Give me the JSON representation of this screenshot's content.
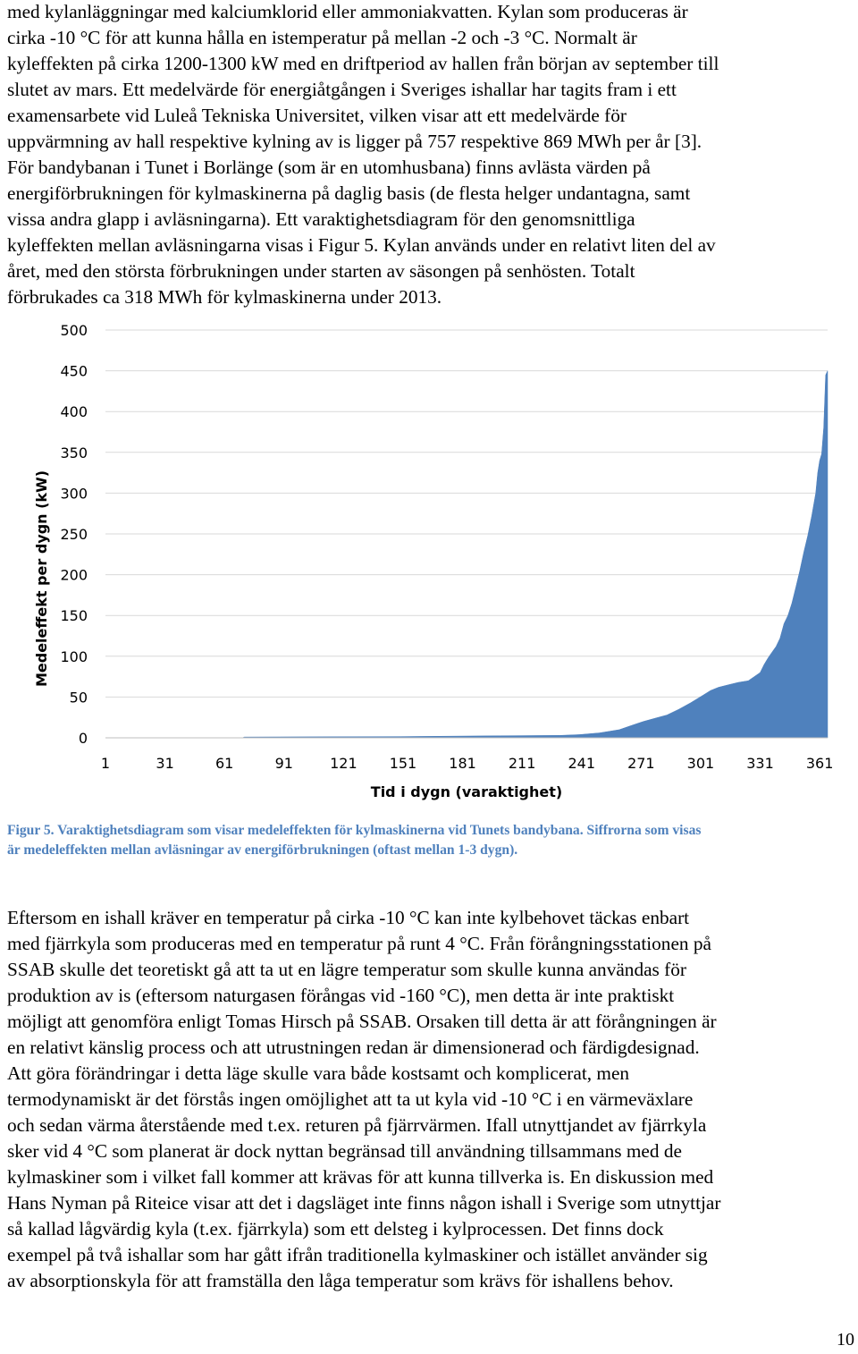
{
  "paragraphs": {
    "top": "med kylanläggningar med kalciumklorid eller ammoniakvatten. Kylan som produceras är\ncirka -10 °C för att kunna hålla en istemperatur på mellan -2 och -3 °C. Normalt är\nkyleffekten på cirka 1200-1300 kW med en driftperiod av hallen från början av september till\nslutet av mars. Ett medelvärde för energiåtgången i Sveriges ishallar har tagits fram i ett\nexamensarbete vid Luleå Tekniska Universitet, vilken visar att ett medelvärde för\nuppvärmning av hall respektive kylning av is ligger på 757 respektive 869 MWh per år [3].\nFör bandybanan i Tunet i Borlänge (som är en utomhusbana) finns avlästa värden på\nenergiförbrukningen för kylmaskinerna på daglig basis (de flesta helger undantagna, samt\nvissa andra glapp i avläsningarna). Ett varaktighetsdiagram för den genomsnittliga\nkyleffekten mellan avläsningarna visas i Figur 5. Kylan används under en relativt liten del av\nåret, med den största förbrukningen under starten av säsongen på senhösten. Totalt\nförbrukades ca 318 MWh för kylmaskinerna under 2013.",
    "bottom": "Eftersom en ishall kräver en temperatur på cirka -10 °C kan inte kylbehovet täckas enbart\nmed fjärrkyla som produceras med en temperatur på runt 4 °C. Från förångningsstationen på\nSSAB skulle det teoretiskt gå att ta ut en lägre temperatur som skulle kunna användas för\nproduktion av is (eftersom naturgasen förångas vid -160 °C), men detta är inte praktiskt\nmöjligt att genomföra enligt Tomas Hirsch på SSAB. Orsaken till detta är att förångningen är\nen relativt känslig process och att utrustningen redan är dimensionerad och färdigdesignad.\nAtt göra förändringar i detta läge skulle vara både kostsamt och komplicerat, men\ntermodynamiskt är det förstås ingen omöjlighet att ta ut kyla vid -10 °C i en värmeväxlare\noch sedan värma återstående med t.ex. returen på fjärrvärmen. Ifall utnyttjandet av fjärrkyla\nsker vid 4 °C som planerat är dock nyttan begränsad till användning tillsammans med de\nkylmaskiner som i vilket fall kommer att krävas för att kunna tillverka is. En diskussion med\nHans Nyman på Riteice visar att det i dagsläget inte finns någon ishall i Sverige som utnyttjar\nså kallad lågvärdig kyla (t.ex. fjärrkyla) som ett delsteg i kylprocessen. Det finns dock\nexempel på två ishallar som har gått ifrån traditionella kylmaskiner och istället använder sig\nav absorptionskyla för att framställa den låga temperatur som krävs för ishallens behov."
  },
  "caption": "Figur 5. Varaktighetsdiagram som visar medeleffekten för kylmaskinerna vid Tunets bandybana. Siffrorna som visas\när medeleffekten mellan avläsningar av energiförbrukningen (oftast mellan 1-3 dygn).",
  "page_number": "10",
  "chart_data": {
    "type": "area",
    "xlabel": "Tid i dygn (varaktighet)",
    "ylabel": "Medeleffekt per dygn (kW)",
    "xlim": [
      1,
      365
    ],
    "ylim": [
      0,
      500
    ],
    "yticks": [
      0,
      50,
      100,
      150,
      200,
      250,
      300,
      350,
      400,
      450,
      500
    ],
    "xticks": [
      1,
      31,
      61,
      91,
      121,
      151,
      181,
      211,
      241,
      271,
      301,
      331,
      361
    ],
    "fill_color": "#4f81bd",
    "grid": "horizontal",
    "points": [
      [
        1,
        0
      ],
      [
        70,
        0
      ],
      [
        71,
        1
      ],
      [
        150,
        1.5
      ],
      [
        200,
        2.5
      ],
      [
        230,
        3
      ],
      [
        240,
        4
      ],
      [
        250,
        6
      ],
      [
        255,
        8
      ],
      [
        260,
        10
      ],
      [
        266,
        15
      ],
      [
        272,
        20
      ],
      [
        278,
        24
      ],
      [
        284,
        28
      ],
      [
        290,
        35
      ],
      [
        296,
        43
      ],
      [
        302,
        52
      ],
      [
        306,
        58
      ],
      [
        310,
        62
      ],
      [
        315,
        65
      ],
      [
        320,
        68
      ],
      [
        325,
        70
      ],
      [
        328,
        75
      ],
      [
        331,
        80
      ],
      [
        333,
        90
      ],
      [
        335,
        98
      ],
      [
        337,
        105
      ],
      [
        339,
        112
      ],
      [
        341,
        122
      ],
      [
        343,
        140
      ],
      [
        345,
        150
      ],
      [
        347,
        165
      ],
      [
        349,
        185
      ],
      [
        351,
        205
      ],
      [
        353,
        228
      ],
      [
        355,
        248
      ],
      [
        357,
        272
      ],
      [
        359,
        300
      ],
      [
        360,
        325
      ],
      [
        361,
        340
      ],
      [
        362,
        348
      ],
      [
        363,
        380
      ],
      [
        364,
        445
      ],
      [
        365,
        450
      ]
    ]
  }
}
